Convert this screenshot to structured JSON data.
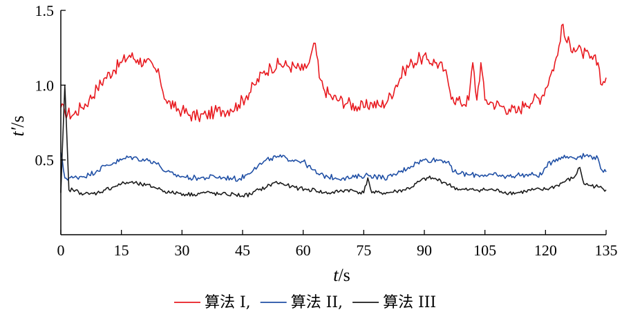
{
  "chart_data": {
    "type": "line",
    "xlabel": {
      "var": "t",
      "sep": "/",
      "unit": "s"
    },
    "ylabel": {
      "var": "t′",
      "sep": "/",
      "unit": "s"
    },
    "xlim": [
      0,
      135
    ],
    "ylim": [
      0,
      1.5
    ],
    "x_ticks": [
      "0",
      "15",
      "30",
      "45",
      "60",
      "75",
      "90",
      "105",
      "120",
      "135"
    ],
    "y_ticks": [
      "0.5",
      "1.0",
      "1.5"
    ],
    "x_tick_values": [
      0,
      15,
      30,
      45,
      60,
      75,
      90,
      105,
      120,
      135
    ],
    "y_tick_values": [
      0.5,
      1.0,
      1.5
    ],
    "grid": false,
    "legend_placement": "bottom",
    "series": [
      {
        "name": "算法 I,",
        "color": "#e8191f",
        "x": [
          0,
          1,
          3,
          5,
          7,
          9,
          11,
          13,
          15,
          17,
          19,
          21,
          23,
          24.5,
          26,
          28,
          30,
          32,
          34,
          36,
          38,
          40,
          42,
          44,
          46,
          48,
          50,
          52,
          54,
          56,
          58,
          60,
          61.5,
          63,
          64,
          65,
          67,
          69,
          71,
          73,
          75,
          77,
          79,
          81,
          83,
          85,
          87,
          89,
          91,
          93,
          95,
          96,
          97,
          99,
          101,
          102,
          103,
          104,
          105,
          107,
          109,
          111,
          113,
          115,
          117,
          119,
          121,
          123,
          124,
          125,
          127,
          129,
          131,
          133,
          134,
          135
        ],
        "values": [
          0.85,
          0.82,
          0.8,
          0.85,
          0.9,
          0.98,
          1.05,
          1.1,
          1.15,
          1.2,
          1.17,
          1.15,
          1.12,
          1.05,
          0.9,
          0.85,
          0.83,
          0.8,
          0.79,
          0.8,
          0.82,
          0.83,
          0.84,
          0.87,
          0.93,
          1.0,
          1.08,
          1.12,
          1.14,
          1.13,
          1.12,
          1.1,
          1.15,
          1.28,
          1.05,
          0.98,
          0.92,
          0.9,
          0.88,
          0.86,
          0.85,
          0.88,
          0.86,
          0.9,
          1.0,
          1.1,
          1.15,
          1.18,
          1.17,
          1.15,
          1.1,
          1.0,
          0.92,
          0.88,
          0.9,
          1.15,
          0.9,
          1.15,
          0.9,
          0.88,
          0.86,
          0.84,
          0.82,
          0.88,
          0.9,
          0.92,
          1.05,
          1.2,
          1.4,
          1.3,
          1.25,
          1.22,
          1.18,
          1.15,
          1.0,
          1.05
        ]
      },
      {
        "name": "算法 II,",
        "color": "#1f4fa5",
        "x": [
          0,
          1,
          3,
          5,
          7,
          9,
          11,
          13,
          15,
          17,
          19,
          21,
          23,
          24.5,
          26,
          28,
          30,
          32,
          34,
          36,
          38,
          40,
          42,
          44,
          46,
          48,
          50,
          52,
          54,
          56,
          58,
          60,
          62,
          64,
          66,
          68,
          70,
          72,
          74,
          76,
          78,
          80,
          82,
          84,
          86,
          88,
          90,
          92,
          94,
          96,
          97,
          99,
          101,
          103,
          105,
          107,
          109,
          111,
          113,
          115,
          117,
          119,
          120,
          122,
          124,
          126,
          128,
          130,
          132,
          133,
          134,
          135
        ],
        "values": [
          0.55,
          0.38,
          0.38,
          0.39,
          0.4,
          0.43,
          0.46,
          0.48,
          0.5,
          0.52,
          0.51,
          0.5,
          0.49,
          0.46,
          0.42,
          0.4,
          0.39,
          0.38,
          0.38,
          0.38,
          0.39,
          0.38,
          0.38,
          0.37,
          0.4,
          0.45,
          0.48,
          0.51,
          0.52,
          0.51,
          0.5,
          0.49,
          0.44,
          0.4,
          0.39,
          0.38,
          0.38,
          0.38,
          0.39,
          0.4,
          0.39,
          0.38,
          0.39,
          0.42,
          0.45,
          0.48,
          0.5,
          0.5,
          0.5,
          0.49,
          0.42,
          0.41,
          0.4,
          0.4,
          0.4,
          0.4,
          0.39,
          0.39,
          0.4,
          0.4,
          0.4,
          0.4,
          0.45,
          0.5,
          0.52,
          0.52,
          0.52,
          0.53,
          0.52,
          0.51,
          0.43,
          0.42
        ]
      },
      {
        "name": "算法 III",
        "color": "#1a1a1a",
        "x": [
          0,
          1,
          2,
          3,
          5,
          7,
          9,
          11,
          13,
          15,
          17,
          19,
          21,
          23,
          25,
          27,
          29,
          31,
          33,
          35,
          37,
          39,
          41,
          43,
          45,
          47,
          49,
          51,
          53,
          55,
          57,
          59,
          61,
          63,
          65,
          67,
          69,
          71,
          73,
          75,
          76,
          77,
          79,
          81,
          83,
          85,
          87,
          89,
          91,
          93,
          95,
          97,
          99,
          101,
          103,
          105,
          107,
          109,
          111,
          113,
          115,
          117,
          119,
          121,
          123,
          125,
          127,
          128.5,
          129.5,
          131,
          133,
          135
        ],
        "values": [
          0.28,
          1.0,
          0.3,
          0.3,
          0.28,
          0.27,
          0.28,
          0.3,
          0.32,
          0.34,
          0.35,
          0.34,
          0.33,
          0.32,
          0.3,
          0.28,
          0.28,
          0.27,
          0.27,
          0.28,
          0.28,
          0.27,
          0.27,
          0.27,
          0.26,
          0.27,
          0.3,
          0.32,
          0.35,
          0.34,
          0.32,
          0.31,
          0.3,
          0.3,
          0.28,
          0.28,
          0.29,
          0.3,
          0.29,
          0.28,
          0.38,
          0.28,
          0.28,
          0.28,
          0.29,
          0.3,
          0.32,
          0.36,
          0.38,
          0.37,
          0.35,
          0.32,
          0.3,
          0.3,
          0.3,
          0.3,
          0.3,
          0.29,
          0.28,
          0.28,
          0.29,
          0.3,
          0.3,
          0.31,
          0.33,
          0.36,
          0.38,
          0.45,
          0.34,
          0.33,
          0.32,
          0.3
        ]
      }
    ]
  }
}
